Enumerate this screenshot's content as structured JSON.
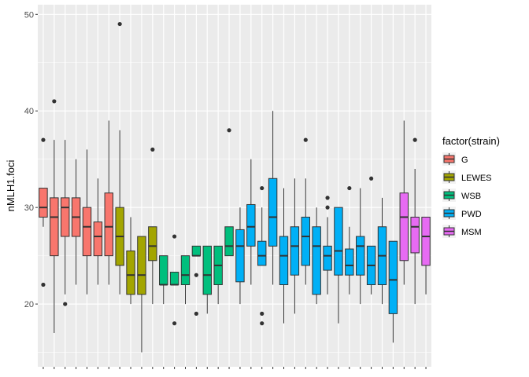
{
  "chart_data": {
    "type": "boxplot",
    "title": "",
    "xlabel": "",
    "ylabel": "nMLH1.foci",
    "ylim": [
      13.5,
      51
    ],
    "yticks": [
      20,
      30,
      40,
      50
    ],
    "x_tick_labels_shown": false,
    "grid": true,
    "legend": {
      "title": "factor(strain)",
      "position": "right",
      "entries": [
        {
          "label": "G",
          "color": "#F8766D"
        },
        {
          "label": "LEWES",
          "color": "#A3A500"
        },
        {
          "label": "WSB",
          "color": "#00BF7D"
        },
        {
          "label": "PWD",
          "color": "#00B0F6"
        },
        {
          "label": "MSM",
          "color": "#E76BF3"
        }
      ]
    },
    "boxes": [
      {
        "group": "G",
        "whisker_low": 28,
        "q1": 29,
        "median": 30,
        "q3": 32,
        "whisker_high": 32,
        "outliers": [
          37,
          22
        ]
      },
      {
        "group": "G",
        "whisker_low": 17,
        "q1": 25,
        "median": 29,
        "q3": 31,
        "whisker_high": 37,
        "outliers": [
          41
        ]
      },
      {
        "group": "G",
        "whisker_low": 21,
        "q1": 27,
        "median": 30,
        "q3": 31,
        "whisker_high": 37,
        "outliers": [
          20
        ]
      },
      {
        "group": "G",
        "whisker_low": 22,
        "q1": 27,
        "median": 29,
        "q3": 31,
        "whisker_high": 35,
        "outliers": []
      },
      {
        "group": "G",
        "whisker_low": 21,
        "q1": 25,
        "median": 28,
        "q3": 30,
        "whisker_high": 36,
        "outliers": []
      },
      {
        "group": "G",
        "whisker_low": 22,
        "q1": 25,
        "median": 27,
        "q3": 28.5,
        "whisker_high": 33,
        "outliers": []
      },
      {
        "group": "G",
        "whisker_low": 22,
        "q1": 25,
        "median": 28,
        "q3": 31.5,
        "whisker_high": 39,
        "outliers": []
      },
      {
        "group": "LEWES",
        "whisker_low": 21,
        "q1": 24,
        "median": 27,
        "q3": 30,
        "whisker_high": 38,
        "outliers": [
          49
        ]
      },
      {
        "group": "LEWES",
        "whisker_low": 20,
        "q1": 21,
        "median": 23,
        "q3": 25.5,
        "whisker_high": 29,
        "outliers": []
      },
      {
        "group": "LEWES",
        "whisker_low": 15,
        "q1": 21,
        "median": 23,
        "q3": 27,
        "whisker_high": 27,
        "outliers": []
      },
      {
        "group": "LEWES",
        "whisker_low": 20,
        "q1": 24.5,
        "median": 26,
        "q3": 28,
        "whisker_high": 28,
        "outliers": [
          36
        ]
      },
      {
        "group": "WSB",
        "whisker_low": 20,
        "q1": 22,
        "median": 22,
        "q3": 25,
        "whisker_high": 25,
        "outliers": []
      },
      {
        "group": "WSB",
        "whisker_low": 22,
        "q1": 22,
        "median": 22,
        "q3": 23.3,
        "whisker_high": 23.3,
        "outliers": [
          27,
          18
        ]
      },
      {
        "group": "WSB",
        "whisker_low": 20,
        "q1": 22,
        "median": 23,
        "q3": 25,
        "whisker_high": 25,
        "outliers": []
      },
      {
        "group": "WSB",
        "whisker_low": 25,
        "q1": 25,
        "median": 25,
        "q3": 26,
        "whisker_high": 26,
        "outliers": [
          23,
          19
        ]
      },
      {
        "group": "WSB",
        "whisker_low": 19,
        "q1": 21,
        "median": 23,
        "q3": 26,
        "whisker_high": 26,
        "outliers": []
      },
      {
        "group": "WSB",
        "whisker_low": 20,
        "q1": 22,
        "median": 24,
        "q3": 26,
        "whisker_high": 26,
        "outliers": []
      },
      {
        "group": "WSB",
        "whisker_low": 25,
        "q1": 25,
        "median": 26,
        "q3": 28,
        "whisker_high": 28,
        "outliers": [
          38
        ]
      },
      {
        "group": "PWD",
        "whisker_low": 20,
        "q1": 22.3,
        "median": 26,
        "q3": 27.7,
        "whisker_high": 30,
        "outliers": []
      },
      {
        "group": "PWD",
        "whisker_low": 22,
        "q1": 26,
        "median": 28,
        "q3": 30.3,
        "whisker_high": 35,
        "outliers": []
      },
      {
        "group": "PWD",
        "whisker_low": 24,
        "q1": 24,
        "median": 25,
        "q3": 26.5,
        "whisker_high": 30,
        "outliers": [
          32,
          19,
          18
        ]
      },
      {
        "group": "PWD",
        "whisker_low": 22,
        "q1": 26,
        "median": 29,
        "q3": 33,
        "whisker_high": 40,
        "outliers": []
      },
      {
        "group": "PWD",
        "whisker_low": 18,
        "q1": 22,
        "median": 25,
        "q3": 27,
        "whisker_high": 32,
        "outliers": []
      },
      {
        "group": "PWD",
        "whisker_low": 19,
        "q1": 23,
        "median": 26,
        "q3": 28,
        "whisker_high": 33,
        "outliers": []
      },
      {
        "group": "PWD",
        "whisker_low": 22,
        "q1": 24,
        "median": 27,
        "q3": 29,
        "whisker_high": 33,
        "outliers": [
          37
        ]
      },
      {
        "group": "PWD",
        "whisker_low": 20,
        "q1": 21,
        "median": 26,
        "q3": 28,
        "whisker_high": 30,
        "outliers": []
      },
      {
        "group": "PWD",
        "whisker_low": 21,
        "q1": 23.5,
        "median": 25,
        "q3": 26,
        "whisker_high": 29,
        "outliers": [
          31,
          30
        ]
      },
      {
        "group": "PWD",
        "whisker_low": 18,
        "q1": 23,
        "median": 25.5,
        "q3": 30,
        "whisker_high": 30,
        "outliers": []
      },
      {
        "group": "PWD",
        "whisker_low": 21,
        "q1": 23,
        "median": 24,
        "q3": 25.7,
        "whisker_high": 28,
        "outliers": [
          32
        ]
      },
      {
        "group": "PWD",
        "whisker_low": 20,
        "q1": 23,
        "median": 26,
        "q3": 27,
        "whisker_high": 32,
        "outliers": []
      },
      {
        "group": "PWD",
        "whisker_low": 21,
        "q1": 22,
        "median": 24,
        "q3": 26,
        "whisker_high": 26,
        "outliers": [
          33
        ]
      },
      {
        "group": "PWD",
        "whisker_low": 20,
        "q1": 22,
        "median": 25,
        "q3": 28,
        "whisker_high": 31,
        "outliers": []
      },
      {
        "group": "PWD",
        "whisker_low": 16,
        "q1": 19,
        "median": 22.5,
        "q3": 26.5,
        "whisker_high": 26.5,
        "outliers": []
      },
      {
        "group": "MSM",
        "whisker_low": 22,
        "q1": 24.5,
        "median": 29,
        "q3": 31.5,
        "whisker_high": 39,
        "outliers": []
      },
      {
        "group": "MSM",
        "whisker_low": 20,
        "q1": 25.3,
        "median": 28,
        "q3": 29,
        "whisker_high": 34,
        "outliers": [
          37
        ]
      },
      {
        "group": "MSM",
        "whisker_low": 21,
        "q1": 24,
        "median": 27,
        "q3": 29,
        "whisker_high": 29,
        "outliers": []
      }
    ]
  }
}
